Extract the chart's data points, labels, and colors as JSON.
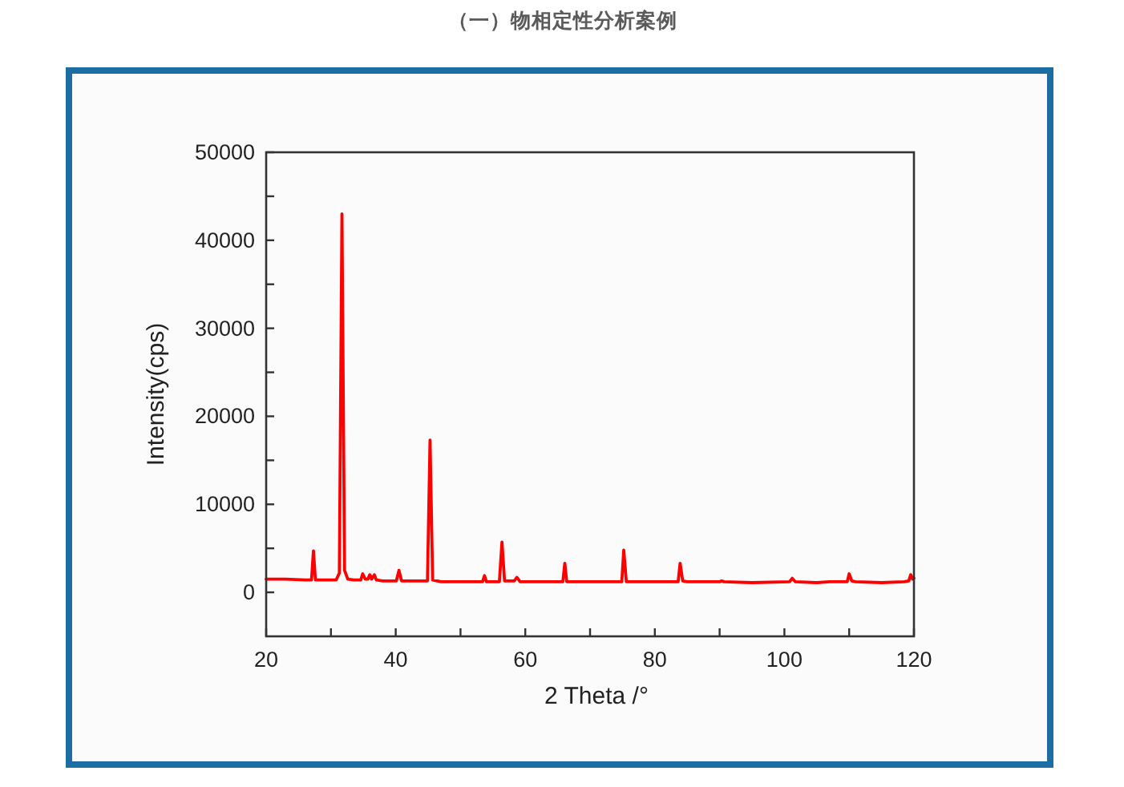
{
  "chart_data": {
    "type": "line",
    "title": "（一）物相定性分析案例",
    "xlabel": "2 Theta /°",
    "ylabel": "Intensity(cps)",
    "x": [
      20,
      23,
      26,
      27.0,
      27.3,
      27.6,
      29,
      30.8,
      31.3,
      31.7,
      32.1,
      32.6,
      33.5,
      34.6,
      34.9,
      35.3,
      35.7,
      36.0,
      36.3,
      36.7,
      37.0,
      38,
      40.1,
      40.5,
      40.9,
      42,
      44.9,
      45.3,
      45.7,
      47,
      50,
      53.4,
      53.7,
      54.0,
      56.0,
      56.4,
      56.8,
      58.3,
      58.7,
      59.2,
      62,
      65.8,
      66.1,
      66.4,
      70,
      74.9,
      75.2,
      75.6,
      80,
      83.6,
      83.9,
      84.3,
      85,
      90.0,
      90.3,
      90.7,
      95,
      100.8,
      101.2,
      101.7,
      105,
      107,
      109.7,
      110.0,
      110.4,
      111,
      115,
      118.5,
      119.2,
      119.5,
      119.8,
      120
    ],
    "series": [
      {
        "color": "#ff0000",
        "values": [
          1500,
          1500,
          1400,
          1400,
          4700,
          1400,
          1400,
          1400,
          2200,
          43000,
          2500,
          1500,
          1400,
          1400,
          2100,
          1500,
          1500,
          2000,
          1500,
          2000,
          1400,
          1300,
          1300,
          2500,
          1300,
          1300,
          1300,
          17300,
          1400,
          1200,
          1200,
          1200,
          1900,
          1200,
          1200,
          5700,
          1300,
          1300,
          1700,
          1200,
          1200,
          1200,
          3300,
          1200,
          1200,
          1200,
          4800,
          1200,
          1200,
          1200,
          3300,
          1300,
          1200,
          1200,
          1300,
          1200,
          1100,
          1200,
          1600,
          1200,
          1100,
          1200,
          1200,
          2100,
          1300,
          1200,
          1100,
          1200,
          1300,
          2000,
          1500,
          1600
        ]
      }
    ],
    "xlim": [
      20,
      120
    ],
    "ylim": [
      -5000,
      50000
    ],
    "xticks": [
      20,
      {
        "value": 30,
        "label": null
      },
      40,
      {
        "value": 50,
        "label": null
      },
      60,
      {
        "value": 70,
        "label": null
      },
      80,
      {
        "value": 90,
        "label": null
      },
      100,
      {
        "value": 110,
        "label": null
      },
      120
    ],
    "yticks": [
      0,
      {
        "value": 5000,
        "label": null
      },
      10000,
      {
        "value": 15000,
        "label": null
      },
      20000,
      {
        "value": 25000,
        "label": null
      },
      30000,
      {
        "value": 35000,
        "label": null
      },
      40000,
      {
        "value": 45000,
        "label": null
      },
      50000
    ]
  }
}
